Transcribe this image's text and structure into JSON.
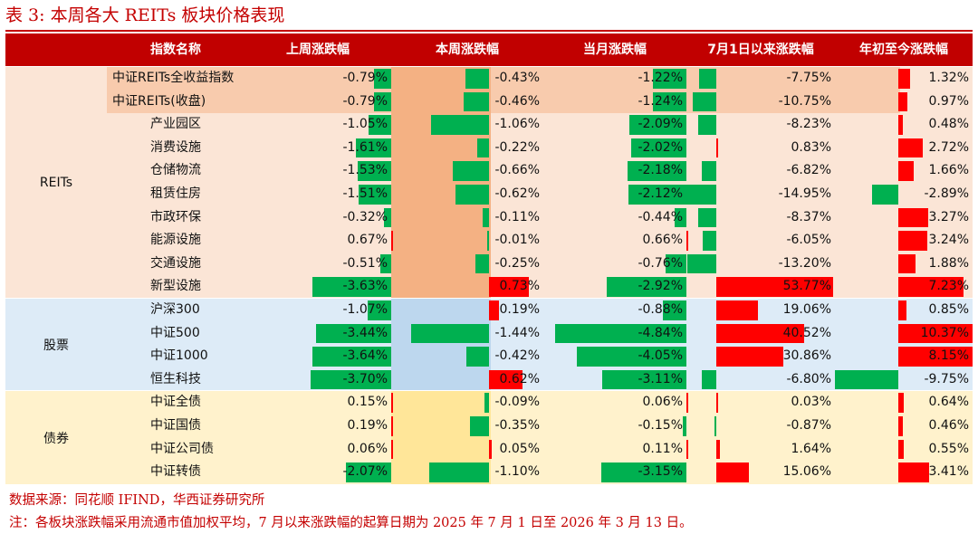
{
  "title": "表 3:  本周各大 REITs 板块价格表现",
  "header": {
    "name": "指数名称",
    "c1": "上周涨跌幅",
    "c2": "本周涨跌幅",
    "c3": "当月涨跌幅",
    "c4": "7月1日以来涨跌幅",
    "c5": "年初至今涨跌幅"
  },
  "colors": {
    "header": "#c10000",
    "up": "#ff0000",
    "down": "#00b050",
    "reits_band": "#fbe5d6",
    "highlight": "#f8cbad",
    "highlight_strong": "#f4b183",
    "stocks_band": "#ddebf7",
    "stocks_strong": "#bdd7ee",
    "bonds_band": "#fff2cc",
    "bonds_strong": "#ffe699"
  },
  "groups": [
    {
      "label": "REITs",
      "rows": [
        0,
        9
      ]
    },
    {
      "label": "股票",
      "rows": [
        10,
        13
      ]
    },
    {
      "label": "债券",
      "rows": [
        14,
        17
      ]
    }
  ],
  "rows": [
    {
      "name": "中证REITs全收益指数",
      "v": [
        "-0.79%",
        "-0.43%",
        "-1.22%",
        "-7.75%",
        "1.32%"
      ],
      "n": [
        -0.79,
        -0.43,
        -1.22,
        -7.75,
        1.32
      ]
    },
    {
      "name": "中证REITs(收盘)",
      "v": [
        "-0.79%",
        "-0.46%",
        "-1.24%",
        "-10.75%",
        "0.97%"
      ],
      "n": [
        -0.79,
        -0.46,
        -1.24,
        -10.75,
        0.97
      ]
    },
    {
      "name": "产业园区",
      "v": [
        "-1.05%",
        "-1.06%",
        "-2.09%",
        "-8.23%",
        "0.48%"
      ],
      "n": [
        -1.05,
        -1.06,
        -2.09,
        -8.23,
        0.48
      ]
    },
    {
      "name": "消费设施",
      "v": [
        "-1.61%",
        "-0.22%",
        "-2.02%",
        "0.83%",
        "2.72%"
      ],
      "n": [
        -1.61,
        -0.22,
        -2.02,
        0.83,
        2.72
      ]
    },
    {
      "name": "仓储物流",
      "v": [
        "-1.53%",
        "-0.66%",
        "-2.18%",
        "-6.82%",
        "1.66%"
      ],
      "n": [
        -1.53,
        -0.66,
        -2.18,
        -6.82,
        1.66
      ]
    },
    {
      "name": "租赁住房",
      "v": [
        "-1.51%",
        "-0.62%",
        "-2.12%",
        "-14.95%",
        "-2.89%"
      ],
      "n": [
        -1.51,
        -0.62,
        -2.12,
        -14.95,
        -2.89
      ]
    },
    {
      "name": "市政环保",
      "v": [
        "-0.32%",
        "-0.11%",
        "-0.44%",
        "-8.37%",
        "3.27%"
      ],
      "n": [
        -0.32,
        -0.11,
        -0.44,
        -8.37,
        3.27
      ]
    },
    {
      "name": "能源设施",
      "v": [
        "0.67%",
        "-0.01%",
        "0.66%",
        "-6.05%",
        "3.24%"
      ],
      "n": [
        0.67,
        -0.01,
        0.66,
        -6.05,
        3.24
      ]
    },
    {
      "name": "交通设施",
      "v": [
        "-0.51%",
        "-0.25%",
        "-0.76%",
        "-13.20%",
        "1.88%"
      ],
      "n": [
        -0.51,
        -0.25,
        -0.76,
        -13.2,
        1.88
      ]
    },
    {
      "name": "新型设施",
      "v": [
        "-3.63%",
        "0.73%",
        "-2.92%",
        "53.77%",
        "7.23%"
      ],
      "n": [
        -3.63,
        0.73,
        -2.92,
        53.77,
        7.23
      ]
    },
    {
      "name": "沪深300",
      "v": [
        "-1.07%",
        "0.19%",
        "-0.88%",
        "19.06%",
        "0.85%"
      ],
      "n": [
        -1.07,
        0.19,
        -0.88,
        19.06,
        0.85
      ]
    },
    {
      "name": "中证500",
      "v": [
        "-3.44%",
        "-1.44%",
        "-4.84%",
        "40.52%",
        "10.37%"
      ],
      "n": [
        -3.44,
        -1.44,
        -4.84,
        40.52,
        10.37
      ]
    },
    {
      "name": "中证1000",
      "v": [
        "-3.64%",
        "-0.42%",
        "-4.05%",
        "30.86%",
        "8.15%"
      ],
      "n": [
        -3.64,
        -0.42,
        -4.05,
        30.86,
        8.15
      ]
    },
    {
      "name": "恒生科技",
      "v": [
        "-3.70%",
        "0.62%",
        "-3.11%",
        "-6.80%",
        "-9.75%"
      ],
      "n": [
        -3.7,
        0.62,
        -3.11,
        -6.8,
        -9.75
      ]
    },
    {
      "name": "中证全债",
      "v": [
        "0.15%",
        "-0.09%",
        "0.06%",
        "0.03%",
        "0.64%"
      ],
      "n": [
        0.15,
        -0.09,
        0.06,
        0.03,
        0.64
      ]
    },
    {
      "name": "中证国债",
      "v": [
        "0.19%",
        "-0.35%",
        "-0.15%",
        "-0.87%",
        "0.46%"
      ],
      "n": [
        0.19,
        -0.35,
        -0.15,
        -0.87,
        0.46
      ]
    },
    {
      "name": "中证公司债",
      "v": [
        "0.06%",
        "0.05%",
        "0.11%",
        "1.64%",
        "0.55%"
      ],
      "n": [
        0.06,
        0.05,
        0.11,
        1.64,
        0.55
      ]
    },
    {
      "name": "中证转债",
      "v": [
        "-2.07%",
        "-1.10%",
        "-3.15%",
        "15.06%",
        "3.41%"
      ],
      "n": [
        -2.07,
        -1.1,
        -3.15,
        15.06,
        3.41
      ]
    }
  ],
  "footer": {
    "source": "数据来源：同花顺 IFIND，华西证券研究所",
    "note": "注：各板块涨跌幅采用流通市值加权平均，7 月以来涨跌幅的起算日期为 2025 年 7 月 1 日至 2026 年 3 月 13 日。"
  }
}
